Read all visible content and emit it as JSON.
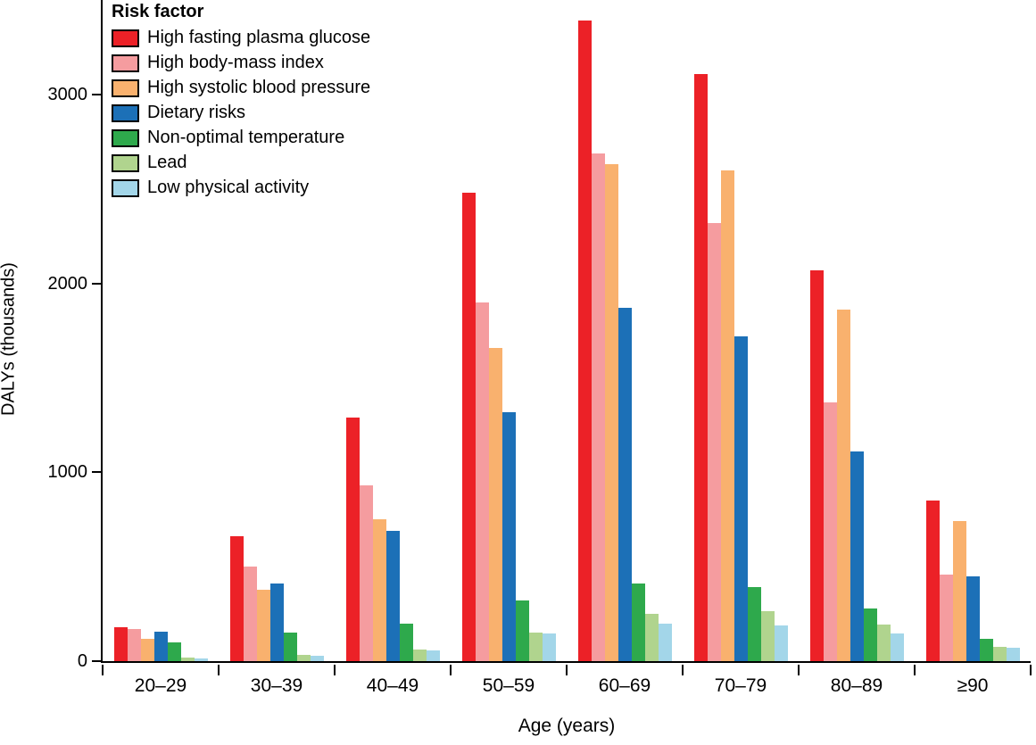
{
  "chart_data": {
    "type": "bar",
    "title": "",
    "xlabel": "Age (years)",
    "ylabel": "DALYs (thousands)",
    "legend_title": "Risk factor",
    "legend_position": "top-left inside plot",
    "grid": false,
    "ylim": [
      0,
      3500
    ],
    "yticks": [
      0,
      1000,
      2000,
      3000
    ],
    "categories": [
      "20–29",
      "30–39",
      "40–49",
      "50–59",
      "60–69",
      "70–79",
      "80–89",
      "≥90"
    ],
    "series": [
      {
        "name": "High fasting plasma glucose",
        "color": "#EC2127",
        "values": [
          180,
          660,
          1290,
          2480,
          3390,
          3110,
          2070,
          850
        ]
      },
      {
        "name": "High body-mass index",
        "color": "#F59C9F",
        "values": [
          170,
          500,
          930,
          1900,
          2690,
          2320,
          1370,
          460
        ]
      },
      {
        "name": "High systolic blood pressure",
        "color": "#F9B16E",
        "values": [
          120,
          380,
          750,
          1660,
          2630,
          2600,
          1860,
          740
        ]
      },
      {
        "name": "Dietary risks",
        "color": "#1C70B7",
        "values": [
          155,
          410,
          690,
          1320,
          1870,
          1720,
          1110,
          450
        ]
      },
      {
        "name": "Non-optimal temperature",
        "color": "#2EA94C",
        "values": [
          100,
          150,
          200,
          320,
          410,
          390,
          280,
          120
        ]
      },
      {
        "name": "Lead",
        "color": "#B0D48E",
        "values": [
          20,
          35,
          60,
          150,
          250,
          265,
          195,
          75
        ]
      },
      {
        "name": "Low physical activity",
        "color": "#A3D6E9",
        "values": [
          15,
          30,
          55,
          145,
          200,
          190,
          145,
          70
        ]
      }
    ]
  }
}
